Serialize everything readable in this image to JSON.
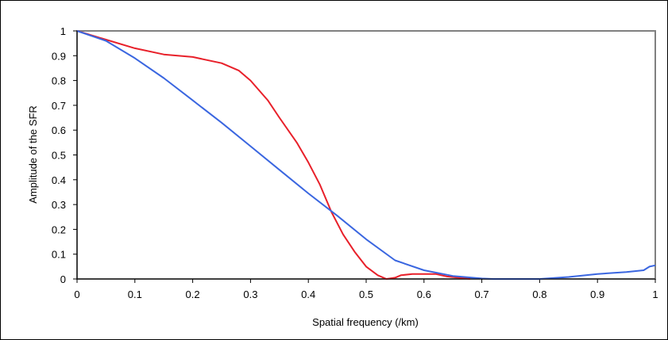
{
  "chart_data": {
    "type": "line",
    "title": "",
    "xlabel": "Spatial frequency (/km)",
    "ylabel": "Amplitude of the SFR",
    "xlim": [
      0,
      1
    ],
    "ylim": [
      0,
      1
    ],
    "x_ticks": [
      "0",
      "0.1",
      "0.2",
      "0.3",
      "0.4",
      "0.5",
      "0.6",
      "0.7",
      "0.8",
      "0.9",
      "1"
    ],
    "y_ticks": [
      "0",
      "0.1",
      "0.2",
      "0.3",
      "0.4",
      "0.5",
      "0.6",
      "0.7",
      "0.8",
      "0.9",
      "1"
    ],
    "grid": false,
    "legend": "none",
    "series": [
      {
        "color": "#e8202a",
        "points": [
          [
            0,
            1.0
          ],
          [
            0.05,
            0.965
          ],
          [
            0.1,
            0.93
          ],
          [
            0.15,
            0.905
          ],
          [
            0.2,
            0.895
          ],
          [
            0.25,
            0.87
          ],
          [
            0.28,
            0.84
          ],
          [
            0.3,
            0.8
          ],
          [
            0.33,
            0.72
          ],
          [
            0.35,
            0.65
          ],
          [
            0.38,
            0.55
          ],
          [
            0.4,
            0.47
          ],
          [
            0.42,
            0.38
          ],
          [
            0.44,
            0.27
          ],
          [
            0.46,
            0.18
          ],
          [
            0.48,
            0.11
          ],
          [
            0.5,
            0.05
          ],
          [
            0.52,
            0.015
          ],
          [
            0.535,
            0.0
          ],
          [
            0.55,
            0.005
          ],
          [
            0.56,
            0.015
          ],
          [
            0.58,
            0.02
          ],
          [
            0.62,
            0.02
          ],
          [
            0.64,
            0.01
          ],
          [
            0.66,
            0.005
          ],
          [
            0.68,
            0.0
          ]
        ]
      },
      {
        "color": "#3a66e0",
        "points": [
          [
            0,
            1.0
          ],
          [
            0.05,
            0.96
          ],
          [
            0.1,
            0.89
          ],
          [
            0.15,
            0.81
          ],
          [
            0.2,
            0.72
          ],
          [
            0.25,
            0.63
          ],
          [
            0.3,
            0.535
          ],
          [
            0.35,
            0.44
          ],
          [
            0.4,
            0.345
          ],
          [
            0.45,
            0.255
          ],
          [
            0.5,
            0.16
          ],
          [
            0.55,
            0.075
          ],
          [
            0.6,
            0.035
          ],
          [
            0.65,
            0.012
          ],
          [
            0.7,
            0.002
          ],
          [
            0.72,
            0.0
          ],
          [
            0.8,
            0.0
          ],
          [
            0.85,
            0.008
          ],
          [
            0.9,
            0.02
          ],
          [
            0.95,
            0.028
          ],
          [
            0.98,
            0.035
          ],
          [
            0.99,
            0.05
          ],
          [
            1.0,
            0.055
          ]
        ]
      }
    ]
  }
}
